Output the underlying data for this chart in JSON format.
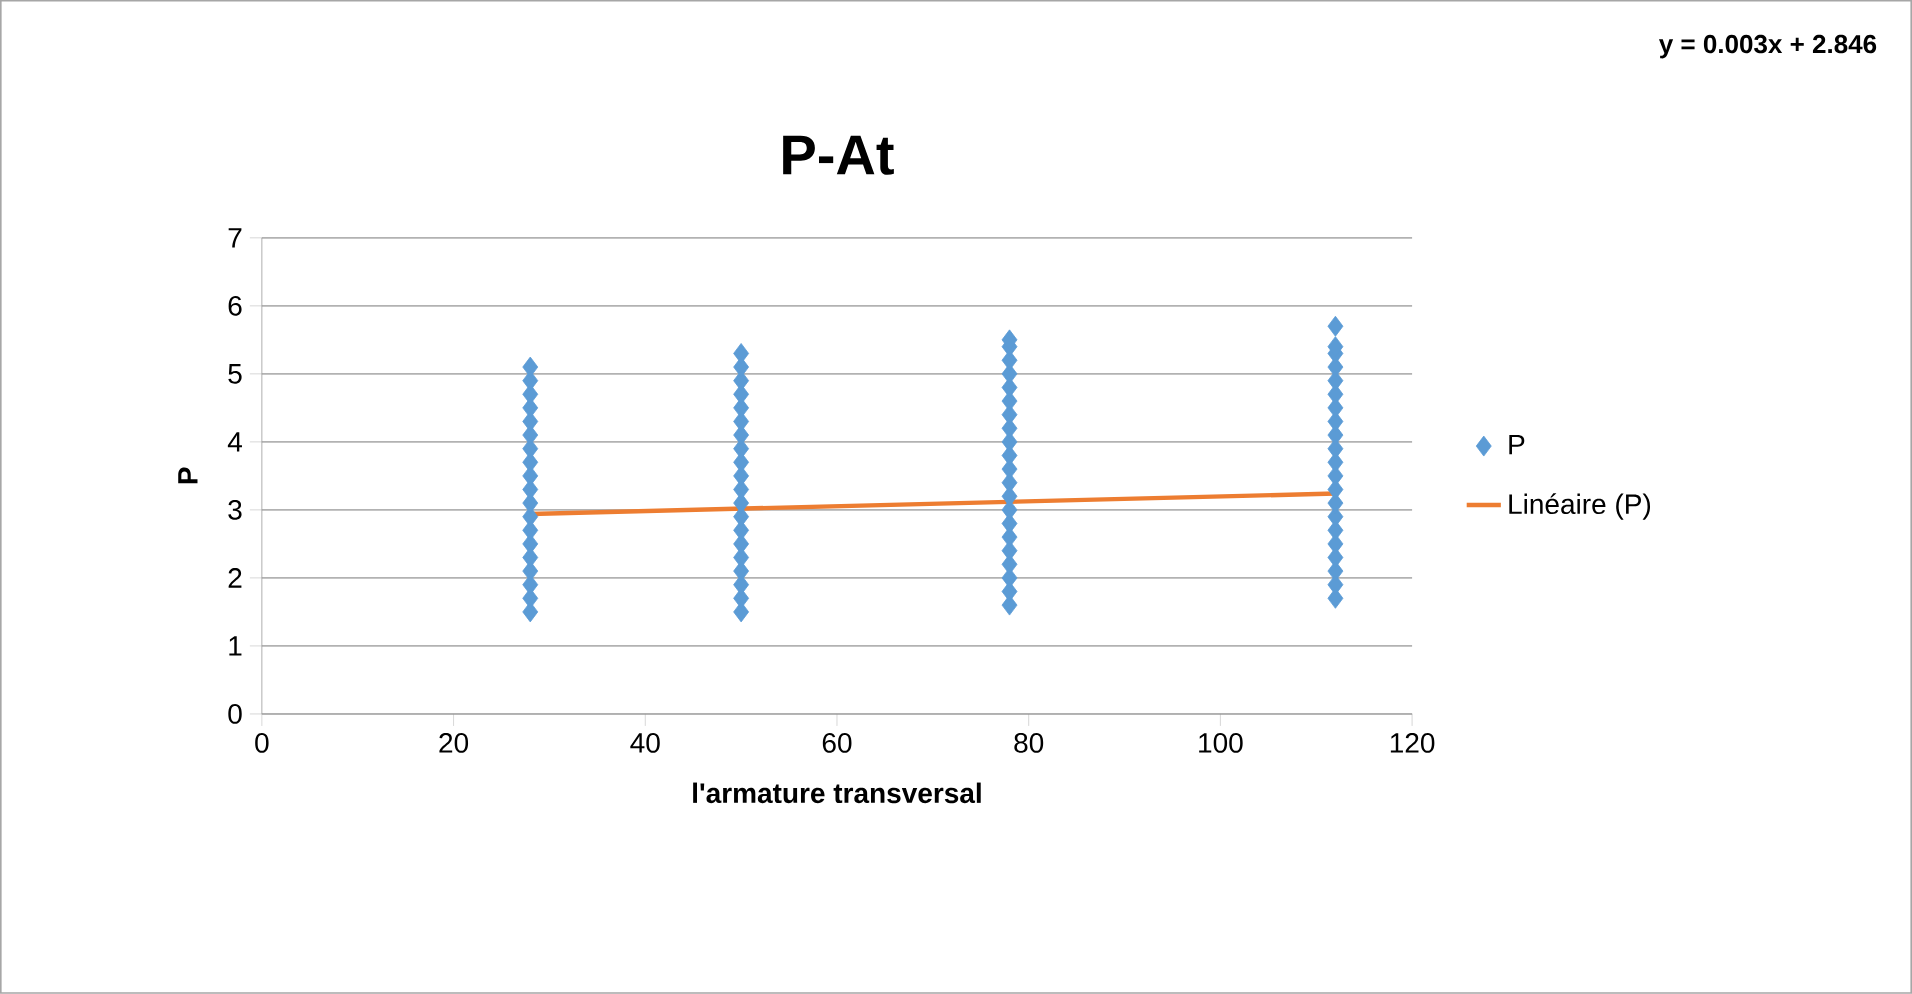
{
  "chart_data": {
    "type": "scatter",
    "title": "P-At",
    "xlabel": "l'armature transversal",
    "ylabel": "P",
    "xlim": [
      0,
      120
    ],
    "xticks": [
      0,
      20,
      40,
      60,
      80,
      100,
      120
    ],
    "ylim": [
      0,
      7
    ],
    "yticks": [
      0,
      1,
      2,
      3,
      4,
      5,
      6,
      7
    ],
    "grid": "y",
    "legend": "right",
    "annotations": [
      "y = 0.003x + 2.846"
    ],
    "series": [
      {
        "name": "P",
        "color": "#5b9bd5",
        "marker": "diamond",
        "x": [
          28,
          28,
          28,
          28,
          28,
          28,
          28,
          28,
          28,
          28,
          28,
          28,
          28,
          28,
          28,
          28,
          28,
          28,
          28,
          50,
          50,
          50,
          50,
          50,
          50,
          50,
          50,
          50,
          50,
          50,
          50,
          50,
          50,
          50,
          50,
          50,
          50,
          50,
          50,
          78,
          78,
          78,
          78,
          78,
          78,
          78,
          78,
          78,
          78,
          78,
          78,
          78,
          78,
          78,
          78,
          78,
          78,
          78,
          78,
          78,
          112,
          112,
          112,
          112,
          112,
          112,
          112,
          112,
          112,
          112,
          112,
          112,
          112,
          112,
          112,
          112,
          112,
          112,
          112,
          112,
          112
        ],
        "values": [
          1.5,
          1.7,
          1.9,
          2.1,
          2.3,
          2.5,
          2.7,
          2.9,
          3.1,
          3.3,
          3.5,
          3.7,
          3.9,
          4.1,
          4.3,
          4.5,
          4.7,
          4.9,
          5.1,
          1.5,
          1.7,
          1.9,
          2.1,
          2.3,
          2.5,
          2.7,
          2.9,
          3.1,
          3.3,
          3.5,
          3.7,
          3.9,
          4.1,
          4.3,
          4.5,
          4.7,
          4.9,
          5.1,
          5.3,
          1.6,
          1.8,
          2.0,
          2.2,
          2.4,
          2.6,
          2.8,
          3.0,
          3.2,
          3.4,
          3.6,
          3.8,
          4.0,
          4.2,
          4.4,
          4.6,
          4.8,
          5.0,
          5.2,
          5.4,
          5.5,
          1.7,
          1.9,
          2.1,
          2.3,
          2.5,
          2.7,
          2.9,
          3.1,
          3.3,
          3.5,
          3.7,
          3.9,
          4.1,
          4.3,
          4.5,
          4.7,
          4.9,
          5.1,
          5.3,
          5.4,
          5.7
        ]
      },
      {
        "name": "Linéaire (P)",
        "type": "line",
        "color": "#ed7d31",
        "x": [
          28,
          112
        ],
        "values": [
          2.94,
          3.24
        ]
      }
    ]
  }
}
